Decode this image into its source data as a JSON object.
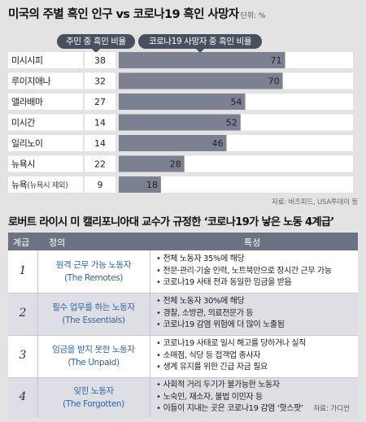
{
  "chart_title": "미국의 주별 흑인 인구 vs 코로나19 흑인 사망자",
  "chart_unit": "단위: %",
  "legend": {
    "population": "주민 중 흑인 비율",
    "deaths": "코로나19 사망자 중 흑인 비율"
  },
  "chart_source": "자료: 버즈피드, USA투데이 등",
  "chart_data": {
    "type": "bar",
    "categories": [
      "미시시피",
      "루이지애나",
      "앨라배마",
      "미시간",
      "일리노이",
      "뉴욕시",
      "뉴욕(뉴욕시 제외)"
    ],
    "series": [
      {
        "name": "주민 중 흑인 비율",
        "values": [
          38,
          32,
          27,
          14,
          14,
          22,
          9
        ]
      },
      {
        "name": "코로나19 사망자 중 흑인 비율",
        "values": [
          71,
          70,
          54,
          52,
          46,
          28,
          18
        ]
      }
    ],
    "xlim": [
      0,
      100
    ]
  },
  "table_title": "로버트 라이시 미 캘리포니아대 교수가 규정한 ‘코로나19가 낳은 노동 4계급’",
  "table_headers": {
    "num": "계급",
    "def": "정의",
    "feat": "특성"
  },
  "rows": [
    {
      "num": "1",
      "def_ko": "원격 근무 가능 노동자",
      "def_en": "(The Remotes)",
      "features": [
        "전체 노동자 35%에 해당",
        "전문·관리·기술 인력, 노트북만으로 장시간 근무 가능",
        "코로나19 사태 전과 동일한 임금을 받음"
      ]
    },
    {
      "num": "2",
      "def_ko": "필수 업무를 하는 노동자",
      "def_en": "(The Essentials)",
      "features": [
        "전체 노동자 30%에 해당",
        "경찰, 소방관, 의료전문가 등",
        "코로나19 감염 위험에 더 많이 노출됨"
      ]
    },
    {
      "num": "3",
      "def_ko": "임금을 받지 못한 노동자",
      "def_en": "(The Unpaid)",
      "features": [
        "코로나19 사태로 일시 해고를 당하거나 실직",
        "소매점, 식당 등 접객업 종사자",
        "생계 유지를 위한 긴급 자금 필요"
      ]
    },
    {
      "num": "4",
      "def_ko": "잊힌 노동자",
      "def_en": "(The Forgotten)",
      "features": [
        "사회적 거리 두기가 불가능한 노동자",
        "노숙인, 재소자, 불법 이민자 등",
        "이들이 지내는 곳은 코로나19 감염 ‘핫스팟’"
      ]
    }
  ],
  "table_source": "자료: 가디언"
}
